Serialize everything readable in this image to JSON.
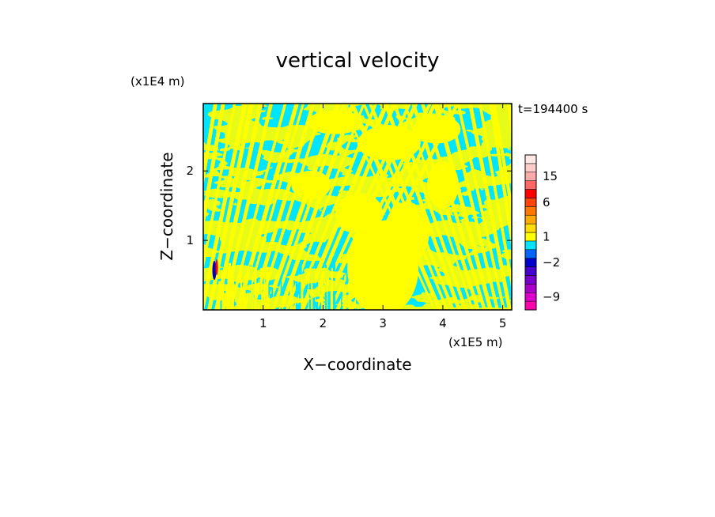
{
  "chart_data": {
    "type": "heatmap",
    "title": "vertical velocity",
    "xlabel": "X−coordinate",
    "ylabel": "Z−coordinate",
    "x_unit": "(x1E5 m)",
    "y_unit": "(x1E4 m)",
    "time_label": "t=194400 s",
    "xlim": [
      0,
      5.15
    ],
    "ylim": [
      0,
      2.97
    ],
    "x_ticks": [
      1,
      2,
      3,
      4,
      5
    ],
    "y_ticks": [
      1,
      2
    ],
    "colorbar": {
      "levels": [
        -12,
        -9,
        -6,
        -4,
        -3,
        -2,
        -1,
        0,
        1,
        2,
        3,
        4,
        6,
        9,
        12,
        15,
        20,
        25
      ],
      "colors": [
        "#ff00aa",
        "#dd00cc",
        "#aa00cc",
        "#7700cc",
        "#4400cc",
        "#0000cc",
        "#0066ff",
        "#00e5ff",
        "#ffff00",
        "#ffdd00",
        "#ffaa00",
        "#ff7700",
        "#ff4400",
        "#ff0000",
        "#ff6666",
        "#ffaaaa",
        "#ffcccc",
        "#ffe8e8"
      ],
      "tick_labels": [
        {
          "value": 15,
          "label": "15"
        },
        {
          "value": 6,
          "label": "6"
        },
        {
          "value": 1,
          "label": "1"
        },
        {
          "value": -2,
          "label": "−2"
        },
        {
          "value": -9,
          "label": "−9"
        }
      ]
    },
    "field_colors": {
      "positive": "#ffff00",
      "negative": "#00e5ff",
      "strong_neg": "#0000cc",
      "strong_pos": "#ff0000"
    }
  }
}
